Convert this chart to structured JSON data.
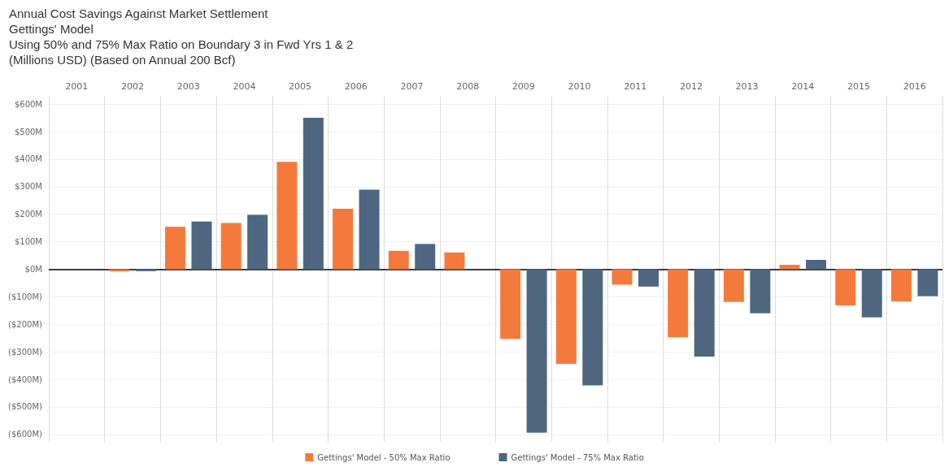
{
  "chart_data": {
    "type": "bar",
    "title": "Annual Cost Savings Against Market Settlement",
    "subtitle": "Gettings' Model\nUsing 50% and 75% Max Ratio on Boundary 3 in Fwd Yrs 1 & 2\n(Millions USD) (Based on Annual 200 Bcf)",
    "categories": [
      "2001",
      "2002",
      "2003",
      "2004",
      "2005",
      "2006",
      "2007",
      "2008",
      "2009",
      "2010",
      "2011",
      "2012",
      "2013",
      "2014",
      "2015",
      "2016"
    ],
    "series": [
      {
        "name": "Gettings' Model - 50% Max Ratio",
        "color": "#f47a3c",
        "values": [
          null,
          -8,
          154,
          168,
          390,
          220,
          67,
          61,
          -253,
          -344,
          -56,
          -247,
          -119,
          16,
          -131,
          -117
        ]
      },
      {
        "name": "Gettings' Model - 75% Max Ratio",
        "color": "#4e6680",
        "values": [
          null,
          -7,
          173,
          198,
          550,
          289,
          92,
          0,
          -594,
          -422,
          -63,
          -317,
          -160,
          34,
          -175,
          -98
        ]
      }
    ],
    "ylim": [
      -630,
      630
    ],
    "yticks": [
      {
        "value": 600,
        "label": "$600M"
      },
      {
        "value": 500,
        "label": "$500M"
      },
      {
        "value": 400,
        "label": "$400M"
      },
      {
        "value": 300,
        "label": "$300M"
      },
      {
        "value": 200,
        "label": "$200M"
      },
      {
        "value": 100,
        "label": "$100M"
      },
      {
        "value": 0,
        "label": "$0M"
      },
      {
        "value": -100,
        "label": "($100M)"
      },
      {
        "value": -200,
        "label": "($200M)"
      },
      {
        "value": -300,
        "label": "($300M)"
      },
      {
        "value": -400,
        "label": "($400M)"
      },
      {
        "value": -500,
        "label": "($500M)"
      },
      {
        "value": -600,
        "label": "($600M)"
      }
    ],
    "ref_lines": [
      {
        "axis": "y",
        "value": 0,
        "color": "#000000"
      }
    ],
    "grid": true,
    "legend": "bottom"
  }
}
